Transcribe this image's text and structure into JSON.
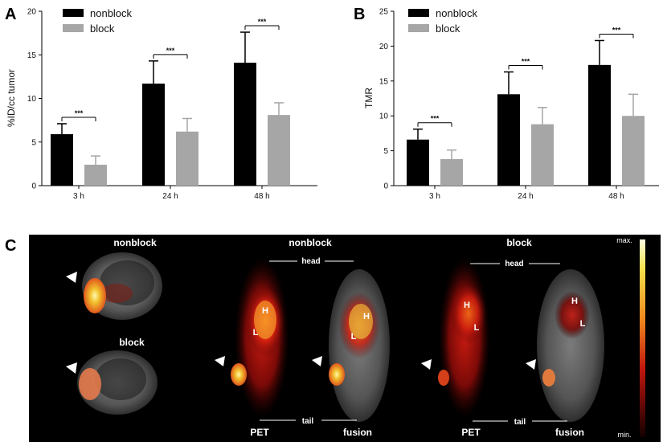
{
  "chart_data": [
    {
      "panel": "A",
      "type": "bar",
      "ylabel": "%ID/cc tumor",
      "ylim": [
        0,
        20
      ],
      "yticks": [
        "0",
        "5",
        "10",
        "15",
        "20"
      ],
      "categories": [
        "3 h",
        "24 h",
        "48 h"
      ],
      "series": [
        {
          "name": "nonblock",
          "color": "#000000",
          "values": [
            5.9,
            11.7,
            14.1
          ],
          "errors": [
            1.2,
            2.6,
            3.5
          ]
        },
        {
          "name": "block",
          "color": "#a6a6a6",
          "values": [
            2.4,
            6.2,
            8.1
          ],
          "errors": [
            1.0,
            1.5,
            1.4
          ]
        }
      ],
      "significance": [
        "***",
        "***",
        "***"
      ]
    },
    {
      "panel": "B",
      "type": "bar",
      "ylabel": "TMR",
      "ylim": [
        0,
        25
      ],
      "yticks": [
        "0",
        "5",
        "10",
        "15",
        "20",
        "25"
      ],
      "categories": [
        "3 h",
        "24 h",
        "48 h"
      ],
      "series": [
        {
          "name": "nonblock",
          "color": "#000000",
          "values": [
            6.6,
            13.1,
            17.3
          ],
          "errors": [
            1.5,
            3.2,
            3.5
          ]
        },
        {
          "name": "block",
          "color": "#a6a6a6",
          "values": [
            3.8,
            8.8,
            10.0
          ],
          "errors": [
            1.3,
            2.4,
            3.1
          ]
        }
      ],
      "significance": [
        "***",
        "***",
        "***"
      ]
    }
  ],
  "panel_c": {
    "letter": "C",
    "left_top_label": "nonblock",
    "left_bottom_label": "block",
    "mid_title": "nonblock",
    "right_title": "block",
    "head": "head",
    "tail": "tail",
    "pet": "PET",
    "fusion": "fusion",
    "heart_marker": "H",
    "liver_marker": "L",
    "colorbar_max": "max.",
    "colorbar_min": "min."
  }
}
